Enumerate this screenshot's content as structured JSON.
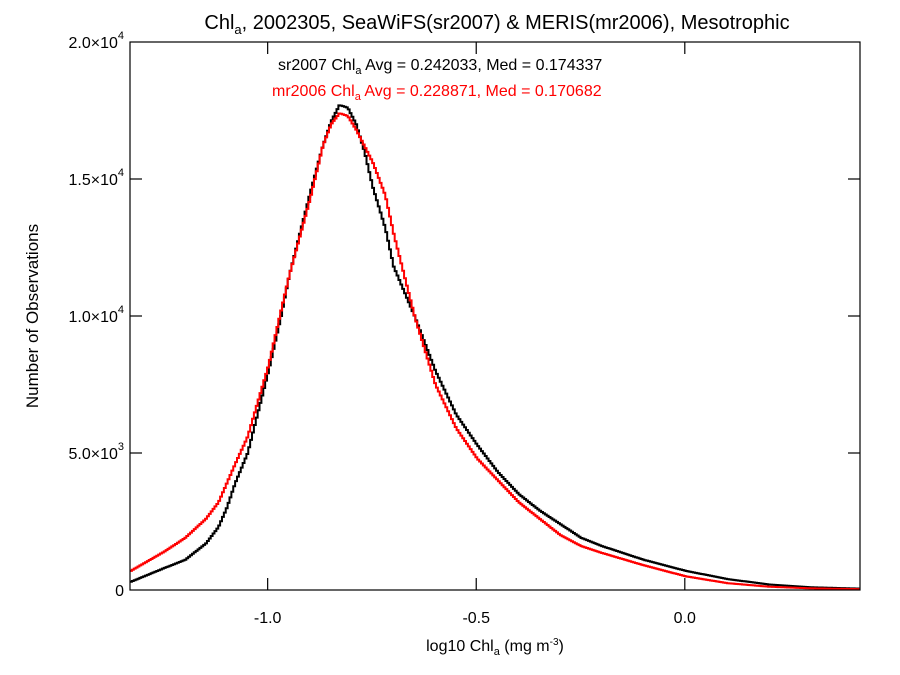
{
  "chart_data": {
    "type": "line",
    "title_parts": {
      "pre": "Chl",
      "sub": "a",
      "post": ", 2002305, SeaWiFS(sr2007) & MERIS(mr2006), Mesotrophic"
    },
    "xlabel_parts": {
      "pre": "log10 Chl",
      "sub": "a",
      "mid": " (mg m",
      "sup": "-3",
      "post": ")"
    },
    "ylabel": "Number of Observations",
    "xlim": [
      -1.33,
      0.42
    ],
    "ylim": [
      0,
      20000
    ],
    "x_ticks": [
      {
        "value": -1.0,
        "label": "-1.0"
      },
      {
        "value": -0.5,
        "label": "-0.5"
      },
      {
        "value": 0.0,
        "label": "0.0"
      }
    ],
    "y_ticks": [
      {
        "value": 0,
        "base": "0",
        "exp": ""
      },
      {
        "value": 5000,
        "base": "5.0×10",
        "exp": "3"
      },
      {
        "value": 10000,
        "base": "1.0×10",
        "exp": "4"
      },
      {
        "value": 15000,
        "base": "1.5×10",
        "exp": "4"
      },
      {
        "value": 20000,
        "base": "2.0×10",
        "exp": "4"
      }
    ],
    "annotations": [
      {
        "pre": "sr2007 Chl",
        "sub": "a",
        "post": " Avg = 0.242033, Med = 0.174337",
        "color": "#000000"
      },
      {
        "pre": "mr2006 Chl",
        "sub": "a",
        "post": " Avg = 0.228871, Med = 0.170682",
        "color": "#ff0000"
      }
    ],
    "series": [
      {
        "color": "#000000",
        "x": [
          -1.33,
          -1.25,
          -1.2,
          -1.15,
          -1.12,
          -1.1,
          -1.08,
          -1.05,
          -1.0,
          -0.97,
          -0.95,
          -0.9,
          -0.87,
          -0.85,
          -0.83,
          -0.81,
          -0.79,
          -0.77,
          -0.75,
          -0.72,
          -0.7,
          -0.65,
          -0.6,
          -0.55,
          -0.5,
          -0.45,
          -0.4,
          -0.35,
          -0.3,
          -0.25,
          -0.2,
          -0.1,
          0.0,
          0.1,
          0.2,
          0.3,
          0.42
        ],
        "y": [
          300,
          800,
          1100,
          1700,
          2300,
          3000,
          3900,
          5000,
          8000,
          10000,
          11500,
          14500,
          16200,
          17100,
          17700,
          17600,
          17000,
          16000,
          14700,
          13200,
          11800,
          10000,
          8000,
          6400,
          5300,
          4300,
          3500,
          2900,
          2400,
          1900,
          1600,
          1100,
          700,
          400,
          200,
          100,
          50
        ]
      },
      {
        "color": "#ff0000",
        "x": [
          -1.33,
          -1.25,
          -1.2,
          -1.15,
          -1.12,
          -1.1,
          -1.08,
          -1.05,
          -1.0,
          -0.97,
          -0.95,
          -0.9,
          -0.87,
          -0.85,
          -0.83,
          -0.81,
          -0.79,
          -0.77,
          -0.75,
          -0.72,
          -0.7,
          -0.65,
          -0.6,
          -0.55,
          -0.5,
          -0.45,
          -0.4,
          -0.35,
          -0.3,
          -0.25,
          -0.2,
          -0.1,
          0.0,
          0.1,
          0.2,
          0.3,
          0.42
        ],
        "y": [
          700,
          1400,
          1900,
          2600,
          3200,
          3900,
          4600,
          5600,
          8200,
          10200,
          11500,
          14300,
          16200,
          17000,
          17400,
          17300,
          16800,
          16200,
          15600,
          14400,
          13000,
          10000,
          7500,
          5900,
          4800,
          4000,
          3200,
          2600,
          2000,
          1600,
          1350,
          900,
          500,
          250,
          120,
          60,
          30
        ]
      }
    ]
  }
}
